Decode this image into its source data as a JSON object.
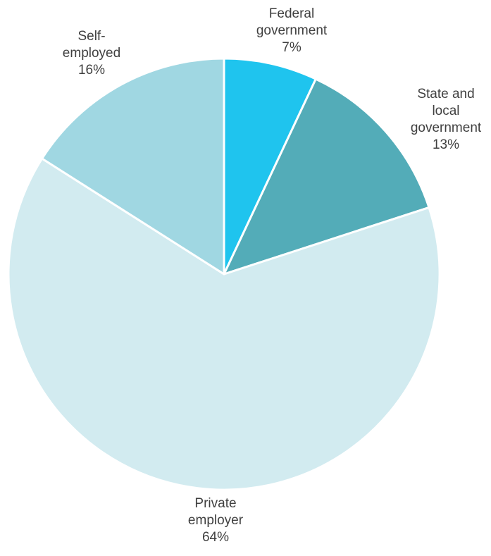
{
  "chart_data": {
    "type": "pie",
    "title": "",
    "start_angle_deg": 0,
    "direction": "clockwise",
    "slices": [
      {
        "label": [
          "Federal",
          "government"
        ],
        "value": 7,
        "value_label": "7%",
        "color": "#1FC4EE"
      },
      {
        "label": [
          "State and",
          "local",
          "government"
        ],
        "value": 13,
        "value_label": "13%",
        "color": "#53ACB8"
      },
      {
        "label": [
          "Private",
          "employer"
        ],
        "value": 64,
        "value_label": "64%",
        "color": "#D2EBF0"
      },
      {
        "label": [
          "Self-",
          "employed"
        ],
        "value": 16,
        "value_label": "16%",
        "color": "#A0D7E2"
      }
    ]
  }
}
